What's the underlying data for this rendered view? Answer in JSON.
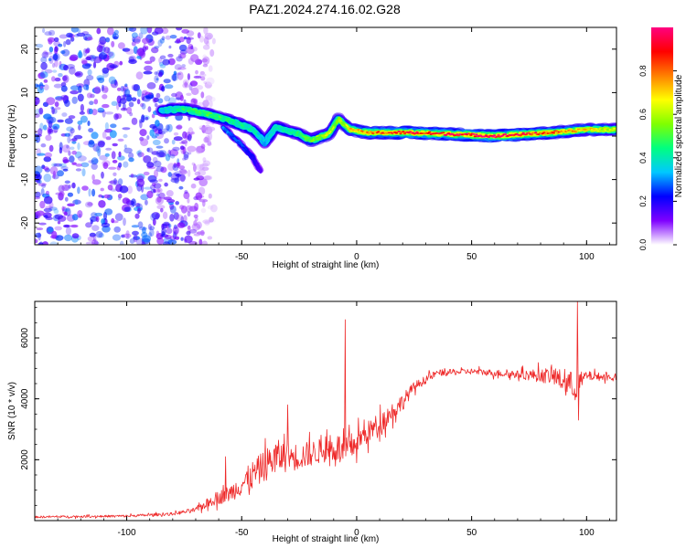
{
  "figure": {
    "title": "PAZ1.2024.274.16.02.G28"
  },
  "chart_data": [
    {
      "type": "heatmap",
      "xlabel": "Height of straight line (km)",
      "ylabel": "Frequency (Hz)",
      "xlim": [
        -140,
        113
      ],
      "ylim": [
        -25,
        25
      ],
      "x_ticks": [
        -100,
        -50,
        0,
        50,
        100
      ],
      "y_ticks": [
        -20,
        -10,
        0,
        10,
        20
      ],
      "colorbar": {
        "label": "Normalized spectral amplitude",
        "range": [
          0,
          1
        ],
        "ticks": [
          "0.0",
          "0.2",
          "0.4",
          "0.6",
          "0.8"
        ],
        "tick_values": [
          0,
          0.2,
          0.4,
          0.6,
          0.8
        ],
        "colors": [
          "#ffffff",
          "#7f00ff",
          "#0000ff",
          "#00c8ff",
          "#00ff80",
          "#80ff00",
          "#ffff00",
          "#ff8000",
          "#ff0000",
          "#ff0080"
        ]
      },
      "ridge": [
        {
          "x": -85,
          "f": 6.0,
          "a": 0.35
        },
        {
          "x": -75,
          "f": 6.2,
          "a": 0.45
        },
        {
          "x": -65,
          "f": 5.0,
          "a": 0.5
        },
        {
          "x": -55,
          "f": 3.5,
          "a": 0.45
        },
        {
          "x": -45,
          "f": 1.5,
          "a": 0.4
        },
        {
          "x": -40,
          "f": -1.5,
          "a": 0.35
        },
        {
          "x": -35,
          "f": 2.0,
          "a": 0.4
        },
        {
          "x": -25,
          "f": 0.5,
          "a": 0.45
        },
        {
          "x": -20,
          "f": -1.0,
          "a": 0.55
        },
        {
          "x": -12,
          "f": 0.5,
          "a": 0.6
        },
        {
          "x": -8,
          "f": 4.0,
          "a": 0.55
        },
        {
          "x": -3,
          "f": 1.5,
          "a": 0.7
        },
        {
          "x": 5,
          "f": 0.8,
          "a": 0.8
        },
        {
          "x": 20,
          "f": 0.8,
          "a": 0.9
        },
        {
          "x": 40,
          "f": 0.5,
          "a": 0.95
        },
        {
          "x": 60,
          "f": 0.0,
          "a": 1.0
        },
        {
          "x": 75,
          "f": 0.5,
          "a": 0.9
        },
        {
          "x": 90,
          "f": 1.0,
          "a": 0.8
        },
        {
          "x": 100,
          "f": 1.5,
          "a": 0.7
        },
        {
          "x": 113,
          "f": 1.5,
          "a": 0.6
        }
      ],
      "secondary_ridge": [
        {
          "x": -58,
          "f": 2.0,
          "a": 0.3
        },
        {
          "x": -50,
          "f": -2.0,
          "a": 0.25
        },
        {
          "x": -45,
          "f": -5.0,
          "a": 0.2
        },
        {
          "x": -42,
          "f": -8.0,
          "a": 0.15
        }
      ],
      "noise_region": {
        "xmin": -140,
        "xmax": -70,
        "fmin": -25,
        "fmax": 25,
        "amplitude": 0.2
      }
    },
    {
      "type": "line",
      "xlabel": "Height of straight line (km)",
      "ylabel": "SNR (10 * v/v)",
      "xlim": [
        -140,
        113
      ],
      "ylim": [
        0,
        7200
      ],
      "x_ticks": [
        -100,
        -50,
        0,
        50,
        100
      ],
      "y_ticks": [
        2000,
        4000,
        6000
      ],
      "series": [
        {
          "color": "#ee2a2a",
          "profile": [
            {
              "x": -140,
              "y": 120,
              "noise": 40
            },
            {
              "x": -100,
              "y": 150,
              "noise": 50
            },
            {
              "x": -80,
              "y": 220,
              "noise": 60
            },
            {
              "x": -70,
              "y": 350,
              "noise": 100
            },
            {
              "x": -62,
              "y": 700,
              "noise": 250
            },
            {
              "x": -55,
              "y": 900,
              "noise": 350
            },
            {
              "x": -45,
              "y": 1500,
              "noise": 600
            },
            {
              "x": -35,
              "y": 2100,
              "noise": 700
            },
            {
              "x": -25,
              "y": 2100,
              "noise": 550
            },
            {
              "x": -15,
              "y": 2300,
              "noise": 500
            },
            {
              "x": -8,
              "y": 2400,
              "noise": 600
            },
            {
              "x": -5,
              "y": 2200,
              "noise": 700
            },
            {
              "x": 0,
              "y": 2600,
              "noise": 500
            },
            {
              "x": 10,
              "y": 3200,
              "noise": 450
            },
            {
              "x": 20,
              "y": 3900,
              "noise": 350
            },
            {
              "x": 25,
              "y": 4400,
              "noise": 200
            },
            {
              "x": 35,
              "y": 4850,
              "noise": 130
            },
            {
              "x": 50,
              "y": 4900,
              "noise": 120
            },
            {
              "x": 70,
              "y": 4800,
              "noise": 160
            },
            {
              "x": 85,
              "y": 4750,
              "noise": 350
            },
            {
              "x": 95,
              "y": 4400,
              "noise": 600
            },
            {
              "x": 100,
              "y": 4750,
              "noise": 200
            },
            {
              "x": 113,
              "y": 4700,
              "noise": 120
            }
          ],
          "peaks": [
            {
              "x": -57,
              "y": 2100
            },
            {
              "x": -30,
              "y": 3800
            },
            {
              "x": -5,
              "y": 6600
            },
            {
              "x": 96,
              "y": 7200
            },
            {
              "x": 96.5,
              "y": 3300
            }
          ]
        }
      ]
    }
  ]
}
